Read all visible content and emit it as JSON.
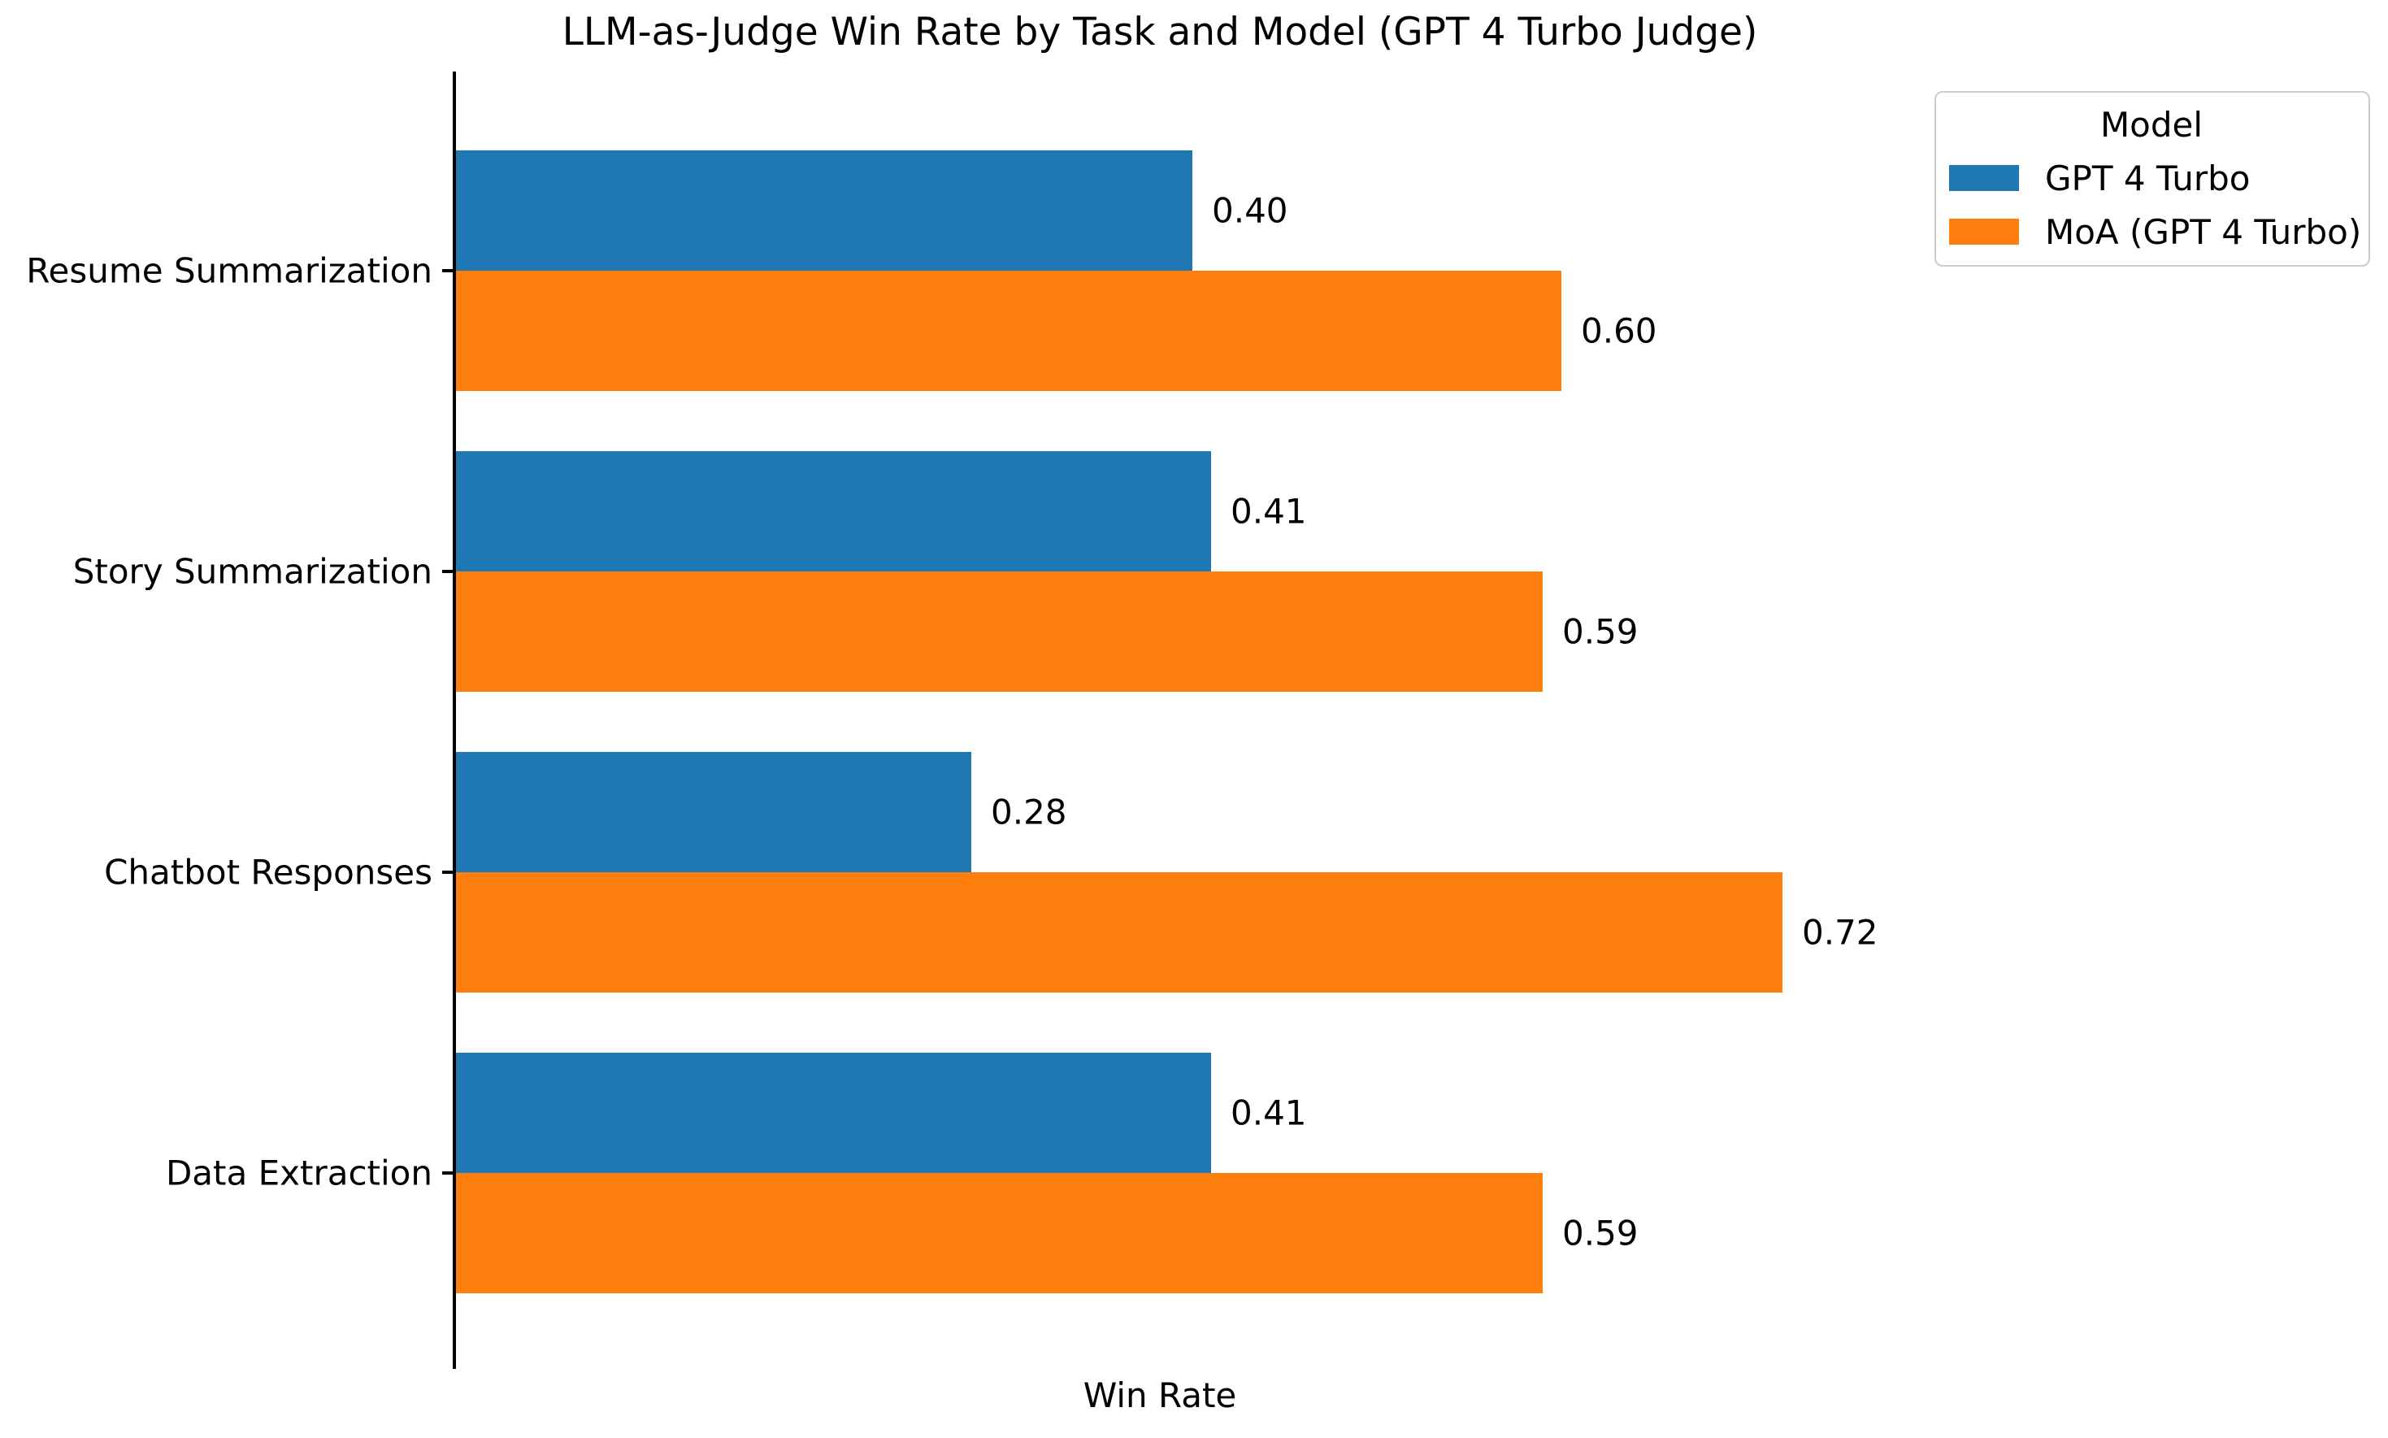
{
  "chart_data": {
    "type": "bar",
    "orientation": "horizontal",
    "title": "LLM-as-Judge Win Rate by Task and Model (GPT 4 Turbo Judge)",
    "xlabel": "Win Rate",
    "ylabel": "",
    "xlim": [
      0,
      0.77
    ],
    "grid": false,
    "categories": [
      "Resume Summarization",
      "Story Summarization",
      "Chatbot Responses",
      "Data Extraction"
    ],
    "series": [
      {
        "name": "GPT 4 Turbo",
        "color": "#1f77b4",
        "values": [
          0.4,
          0.41,
          0.28,
          0.41
        ],
        "labels": [
          "0.40",
          "0.41",
          "0.28",
          "0.41"
        ]
      },
      {
        "name": "MoA (GPT 4 Turbo)",
        "color": "#ff7f0e",
        "values": [
          0.6,
          0.59,
          0.72,
          0.59
        ],
        "labels": [
          "0.60",
          "0.59",
          "0.72",
          "0.59"
        ]
      }
    ],
    "legend": {
      "title": "Model",
      "position": "upper-right-outside"
    }
  }
}
